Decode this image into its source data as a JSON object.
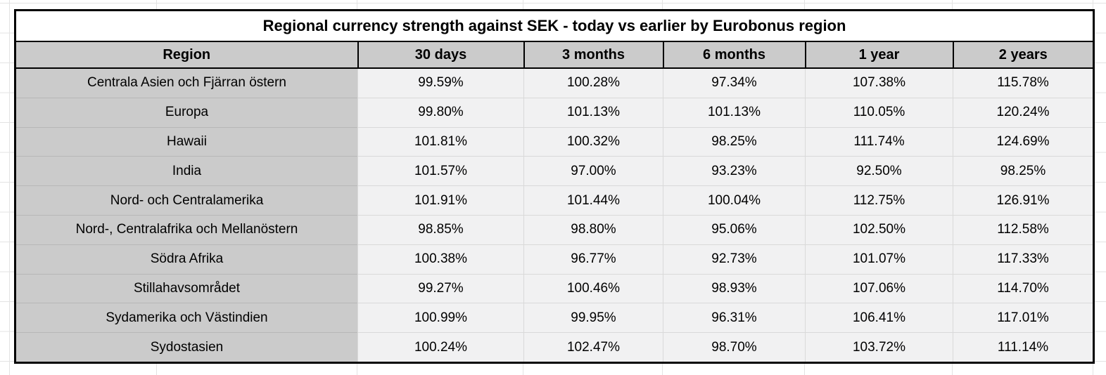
{
  "chart_data": {
    "type": "table",
    "title": "Regional currency strength against SEK - today vs earlier by Eurobonus region",
    "columns": [
      "Region",
      "30 days",
      "3 months",
      "6 months",
      "1 year",
      "2 years"
    ],
    "rows": [
      {
        "region": "Centrala Asien och Fjärran östern",
        "values": [
          "99.59%",
          "100.28%",
          "97.34%",
          "107.38%",
          "115.78%"
        ]
      },
      {
        "region": "Europa",
        "values": [
          "99.80%",
          "101.13%",
          "101.13%",
          "110.05%",
          "120.24%"
        ]
      },
      {
        "region": "Hawaii",
        "values": [
          "101.81%",
          "100.32%",
          "98.25%",
          "111.74%",
          "124.69%"
        ]
      },
      {
        "region": "India",
        "values": [
          "101.57%",
          "97.00%",
          "93.23%",
          "92.50%",
          "98.25%"
        ]
      },
      {
        "region": "Nord- och Centralamerika",
        "values": [
          "101.91%",
          "101.44%",
          "100.04%",
          "112.75%",
          "126.91%"
        ]
      },
      {
        "region": "Nord-, Centralafrika och Mellanöstern",
        "values": [
          "98.85%",
          "98.80%",
          "95.06%",
          "102.50%",
          "112.58%"
        ]
      },
      {
        "region": "Södra Afrika",
        "values": [
          "100.38%",
          "96.77%",
          "92.73%",
          "101.07%",
          "117.33%"
        ]
      },
      {
        "region": "Stillahavsområdet",
        "values": [
          "99.27%",
          "100.46%",
          "98.93%",
          "107.06%",
          "114.70%"
        ]
      },
      {
        "region": "Sydamerika och Västindien",
        "values": [
          "100.99%",
          "99.95%",
          "96.31%",
          "106.41%",
          "117.01%"
        ]
      },
      {
        "region": "Sydostasien",
        "values": [
          "100.24%",
          "102.47%",
          "98.70%",
          "103.72%",
          "111.14%"
        ]
      }
    ],
    "layout_hints": {
      "header_background": "#cbcbcb",
      "region_column_background": "#cbcbcb",
      "data_cell_background": "#f1f1f2",
      "table_border_color": "#000000",
      "sheet_gridline_color": "#e3e3e3",
      "grid": "on"
    }
  }
}
